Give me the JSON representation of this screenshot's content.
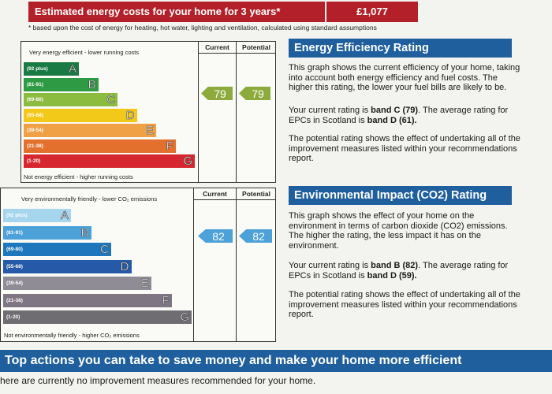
{
  "cost": {
    "label": "Estimated energy costs for your home for 3 years*",
    "value": "£1,077",
    "note": "* based upon the cost of energy for heating, hot water, lighting and ventilation, calculated using standard assumptions"
  },
  "energy_chart": {
    "top_caption": "Very energy efficient - lower running costs",
    "bottom_caption": "Not energy efficient - higher running costs",
    "current_label": "Current",
    "potential_label": "Potential",
    "current_value": "79",
    "potential_value": "79",
    "bands": [
      {
        "range": "(92 plus)",
        "letter": "A",
        "color": "#1a7a43"
      },
      {
        "range": "(81-91)",
        "letter": "B",
        "color": "#2e9a44"
      },
      {
        "range": "(69-80)",
        "letter": "C",
        "color": "#8cbc3f"
      },
      {
        "range": "(55-68)",
        "letter": "D",
        "color": "#f2c918"
      },
      {
        "range": "(39-54)",
        "letter": "E",
        "color": "#f0a045"
      },
      {
        "range": "(21-38)",
        "letter": "F",
        "color": "#e4702e"
      },
      {
        "range": "(1-20)",
        "letter": "G",
        "color": "#d6262e"
      }
    ],
    "arrow_color": "#8cab3c"
  },
  "environment_chart": {
    "top_caption": "Very environmentally friendly - lower CO₂ emissions",
    "bottom_caption": "Not environmentally friendly - higher CO₂ emissions",
    "current_label": "Current",
    "potential_label": "Potential",
    "current_value": "82",
    "potential_value": "82",
    "bands": [
      {
        "range": "(92 plus)",
        "letter": "A",
        "color": "#a6d5ee"
      },
      {
        "range": "(81-91)",
        "letter": "B",
        "color": "#4ba1d8"
      },
      {
        "range": "(69-80)",
        "letter": "C",
        "color": "#1e77bd"
      },
      {
        "range": "(55-68)",
        "letter": "D",
        "color": "#2659a7"
      },
      {
        "range": "(39-54)",
        "letter": "E",
        "color": "#8f8c96"
      },
      {
        "range": "(21-38)",
        "letter": "F",
        "color": "#7e7683"
      },
      {
        "range": "(1-20)",
        "letter": "G",
        "color": "#6f6c72"
      }
    ],
    "arrow_color": "#4ba1d8"
  },
  "energy_section": {
    "title": "Energy Efficiency Rating",
    "p1": "This graph shows the current efficiency of your home, taking into account both energy efficiency and fuel costs. The higher this rating, the lower your fuel bills are likely to be.",
    "p2_prefix": "Your current rating is ",
    "p2_band": "band C (79)",
    "p2_mid": ". The average rating for EPCs in Scotland is ",
    "p2_avg": "band D (61).",
    "p3": "The potential rating shows the effect of undertaking all of the improvement measures listed within your recommendations report."
  },
  "environment_section": {
    "title": "Environmental Impact (CO2) Rating",
    "p1": "This graph shows the effect of your home on the environment in terms of carbon dioxide (CO2) emissions. The higher the rating, the less impact it has on the environment.",
    "p2_prefix": "Your current rating is ",
    "p2_band": "band B (82)",
    "p2_mid": ". The average rating for EPCs in Scotland is ",
    "p2_avg": "band D (59).",
    "p3": "The potential rating shows the effect of undertaking all of the improvement measures listed within your recommendations report."
  },
  "actions": {
    "title": "Top actions you can take to save money and make your home more efficient",
    "note": "here are currently no improvement measures recommended for your home."
  }
}
